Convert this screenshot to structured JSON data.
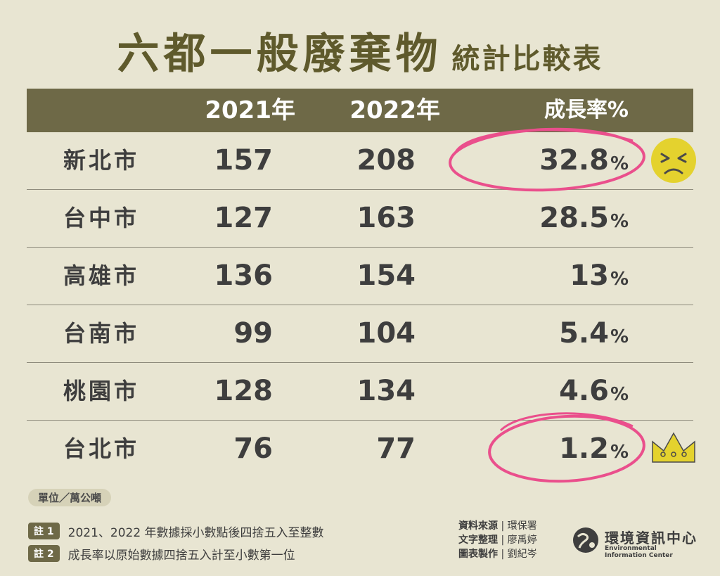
{
  "title": {
    "main": "六都一般廢棄物",
    "sub": "統計比較表"
  },
  "chart_data": {
    "type": "table",
    "columns": [
      "",
      "2021年",
      "2022年",
      "成長率%"
    ],
    "rows": [
      {
        "city": "新北市",
        "y2021": "157",
        "y2022": "208",
        "rate": "32.8",
        "pct": "%"
      },
      {
        "city": "台中市",
        "y2021": "127",
        "y2022": "163",
        "rate": "28.5",
        "pct": "%"
      },
      {
        "city": "高雄市",
        "y2021": "136",
        "y2022": "154",
        "rate": "13",
        "pct": "%"
      },
      {
        "city": "台南市",
        "y2021": "99",
        "y2022": "104",
        "rate": "5.4",
        "pct": "%"
      },
      {
        "city": "桃園市",
        "y2021": "128",
        "y2022": "134",
        "rate": "4.6",
        "pct": "%"
      },
      {
        "city": "台北市",
        "y2021": "76",
        "y2022": "77",
        "rate": "1.2",
        "pct": "%"
      }
    ]
  },
  "unit": "單位／萬公噸",
  "notes": [
    {
      "tag": "註 1",
      "text": "2021、2022 年數據採小數點後四捨五入至整數"
    },
    {
      "tag": "註 2",
      "text": "成長率以原始數據四捨五入計至小數第一位"
    }
  ],
  "credits": [
    {
      "label": "資料來源",
      "value": "環保署"
    },
    {
      "label": "文字整理",
      "value": "廖禹婷"
    },
    {
      "label": "圖表製作",
      "value": "劉紀岑"
    }
  ],
  "logo": {
    "zh": "環境資訊中心",
    "en": "Environmental Information Center"
  },
  "colors": {
    "background": "#e8e5d2",
    "header": "#6e6947",
    "title": "#5f5a2c",
    "highlight": "#ea4f8c",
    "face": "#e4d22e"
  }
}
